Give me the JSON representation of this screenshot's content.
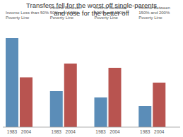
{
  "chart_data": {
    "type": "bar",
    "title": "Transfers fell for the worst off single-parents\nand rose for the better off",
    "categories": [
      "Income Less than 50%\nPoverty Line",
      "Income Between\n50% and 100%\nPoverty Line",
      "Income Between\n100% and 150%\nPoverty Line",
      "Income Between\n150% and 200%\nPoverty Line"
    ],
    "series": [
      {
        "name": "1983",
        "color": "#5B8DB8",
        "values": [
          0.84,
          0.34,
          0.28,
          0.2
        ]
      },
      {
        "name": "2004",
        "color": "#B85450",
        "values": [
          0.47,
          0.6,
          0.56,
          0.42
        ]
      }
    ],
    "ylim": [
      0,
      1.0
    ],
    "yticks": [],
    "tick_labels": "x",
    "grid": false
  }
}
